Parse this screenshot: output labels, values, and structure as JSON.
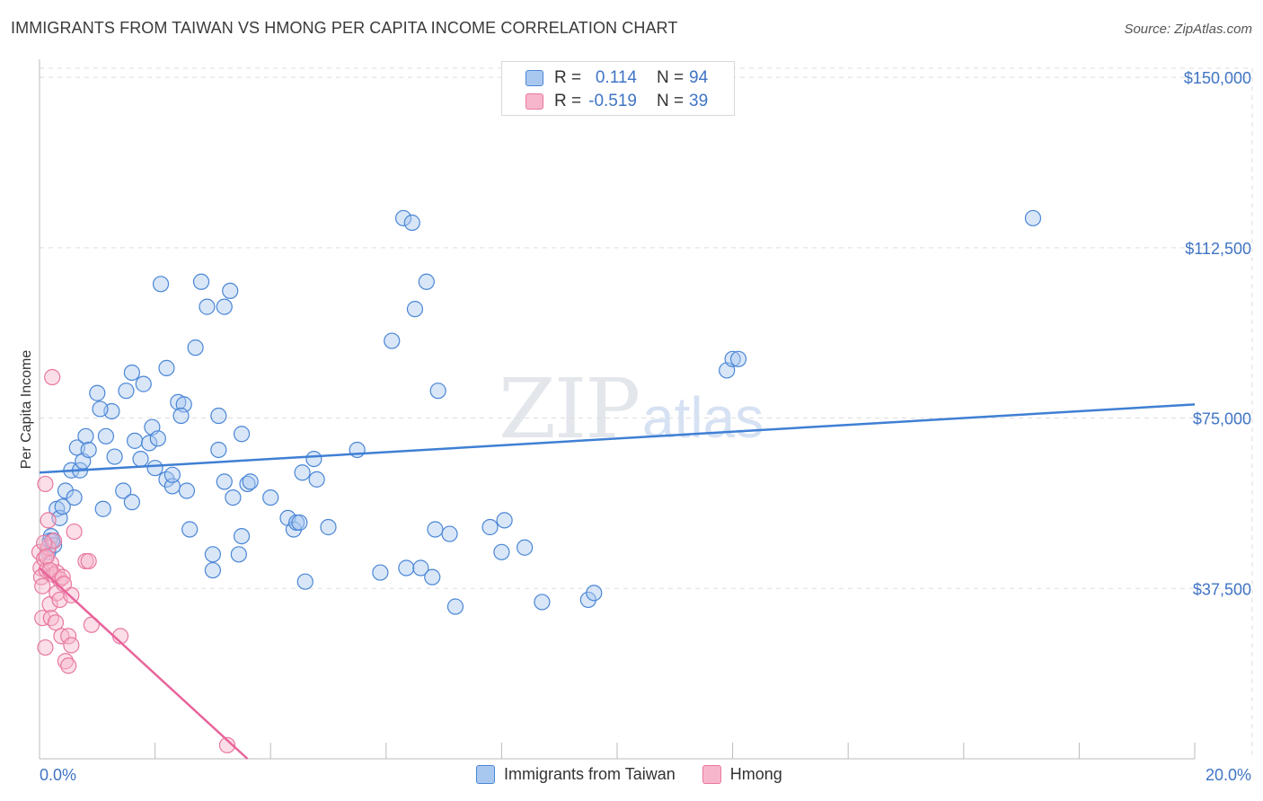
{
  "title": "IMMIGRANTS FROM TAIWAN VS HMONG PER CAPITA INCOME CORRELATION CHART",
  "source": "Source: ZipAtlas.com",
  "watermark": {
    "zip": "ZIP",
    "atlas": "atlas"
  },
  "legend": {
    "rows": [
      {
        "r_label": "R =",
        "r_value": "0.114",
        "n_label": "N =",
        "n_value": "94"
      },
      {
        "r_label": "R =",
        "r_value": "-0.519",
        "n_label": "N =",
        "n_value": "39"
      }
    ]
  },
  "colors": {
    "taiwan_fill": "#a9c8f0",
    "taiwan_stroke": "#4a86d6",
    "taiwan_line": "#3f7fd4",
    "hmong_fill": "#f7b6cb",
    "hmong_stroke": "#e8789e",
    "hmong_line": "#e8649a",
    "grid": "#dddddd",
    "tick_label": "#3f74c4"
  },
  "chart_data": {
    "type": "scatter",
    "title": "IMMIGRANTS FROM TAIWAN VS HMONG PER CAPITA INCOME CORRELATION CHART",
    "xlabel": "",
    "ylabel": "Per Capita Income",
    "xlim": [
      0,
      20
    ],
    "ylim": [
      0,
      152000
    ],
    "x_tick_labels": [
      "0.0%",
      "20.0%"
    ],
    "y_ticks": [
      37500,
      75000,
      112500,
      150000
    ],
    "y_tick_labels": [
      "$37,500",
      "$75,000",
      "$112,500",
      "$150,000"
    ],
    "grid": true,
    "legend_placement": "bottom-center",
    "series": [
      {
        "name": "Immigrants from Taiwan",
        "trend": [
          [
            0.0,
            63000
          ],
          [
            20.0,
            78000
          ]
        ],
        "points": [
          [
            0.15,
            45500
          ],
          [
            0.18,
            48000
          ],
          [
            0.2,
            49000
          ],
          [
            0.25,
            47000
          ],
          [
            0.3,
            55000
          ],
          [
            0.35,
            53000
          ],
          [
            0.4,
            55500
          ],
          [
            0.45,
            59000
          ],
          [
            0.55,
            63500
          ],
          [
            0.6,
            57500
          ],
          [
            0.65,
            68500
          ],
          [
            0.7,
            63500
          ],
          [
            0.75,
            65500
          ],
          [
            0.8,
            71000
          ],
          [
            0.85,
            68000
          ],
          [
            1.0,
            80500
          ],
          [
            1.1,
            55000
          ],
          [
            1.15,
            71000
          ],
          [
            1.25,
            76500
          ],
          [
            1.3,
            66500
          ],
          [
            1.45,
            59000
          ],
          [
            1.5,
            81000
          ],
          [
            1.6,
            56500
          ],
          [
            1.6,
            85000
          ],
          [
            1.65,
            70000
          ],
          [
            1.75,
            66000
          ],
          [
            1.8,
            82500
          ],
          [
            1.9,
            69500
          ],
          [
            1.95,
            73000
          ],
          [
            2.0,
            64000
          ],
          [
            2.05,
            70500
          ],
          [
            2.1,
            104500
          ],
          [
            2.2,
            86000
          ],
          [
            2.2,
            61500
          ],
          [
            2.3,
            60000
          ],
          [
            2.3,
            62500
          ],
          [
            2.4,
            78500
          ],
          [
            2.5,
            78000
          ],
          [
            2.55,
            59000
          ],
          [
            2.6,
            50500
          ],
          [
            2.7,
            90500
          ],
          [
            2.8,
            105000
          ],
          [
            2.9,
            99500
          ],
          [
            3.0,
            45000
          ],
          [
            3.0,
            41500
          ],
          [
            3.1,
            75500
          ],
          [
            3.1,
            68000
          ],
          [
            3.2,
            61000
          ],
          [
            3.2,
            99500
          ],
          [
            3.3,
            103000
          ],
          [
            3.35,
            57500
          ],
          [
            3.45,
            45000
          ],
          [
            3.5,
            49000
          ],
          [
            3.5,
            71500
          ],
          [
            3.6,
            60500
          ],
          [
            3.65,
            61000
          ],
          [
            4.0,
            57500
          ],
          [
            4.3,
            53000
          ],
          [
            4.4,
            50500
          ],
          [
            4.45,
            52000
          ],
          [
            4.55,
            63000
          ],
          [
            4.6,
            39000
          ],
          [
            4.75,
            66000
          ],
          [
            4.8,
            61500
          ],
          [
            5.0,
            51000
          ],
          [
            5.5,
            68000
          ],
          [
            5.9,
            41000
          ],
          [
            6.1,
            92000
          ],
          [
            6.3,
            119000
          ],
          [
            6.35,
            42000
          ],
          [
            6.45,
            118000
          ],
          [
            6.5,
            99000
          ],
          [
            6.6,
            42000
          ],
          [
            6.7,
            105000
          ],
          [
            6.8,
            40000
          ],
          [
            6.85,
            50500
          ],
          [
            6.9,
            81000
          ],
          [
            7.1,
            49500
          ],
          [
            7.2,
            33500
          ],
          [
            7.8,
            51000
          ],
          [
            8.05,
            52500
          ],
          [
            8.0,
            45500
          ],
          [
            8.4,
            46500
          ],
          [
            8.7,
            34500
          ],
          [
            9.5,
            35000
          ],
          [
            9.6,
            36500
          ],
          [
            11.9,
            85500
          ],
          [
            12.0,
            88000
          ],
          [
            12.1,
            88000
          ],
          [
            17.2,
            119000
          ],
          [
            0.22,
            48000
          ],
          [
            1.05,
            77000
          ],
          [
            2.45,
            75500
          ],
          [
            4.5,
            52000
          ]
        ]
      },
      {
        "name": "Hmong",
        "trend": [
          [
            0.0,
            42000
          ],
          [
            3.6,
            0
          ]
        ],
        "points": [
          [
            0.0,
            45500
          ],
          [
            0.02,
            42000
          ],
          [
            0.03,
            40000
          ],
          [
            0.05,
            38000
          ],
          [
            0.05,
            31000
          ],
          [
            0.08,
            44000
          ],
          [
            0.1,
            60500
          ],
          [
            0.1,
            24500
          ],
          [
            0.12,
            41500
          ],
          [
            0.15,
            46500
          ],
          [
            0.15,
            52500
          ],
          [
            0.18,
            34000
          ],
          [
            0.2,
            43000
          ],
          [
            0.2,
            31000
          ],
          [
            0.22,
            84000
          ],
          [
            0.25,
            40500
          ],
          [
            0.25,
            48000
          ],
          [
            0.28,
            30000
          ],
          [
            0.3,
            41000
          ],
          [
            0.3,
            36500
          ],
          [
            0.35,
            35000
          ],
          [
            0.35,
            39500
          ],
          [
            0.38,
            27000
          ],
          [
            0.4,
            40000
          ],
          [
            0.45,
            21500
          ],
          [
            0.5,
            20500
          ],
          [
            0.5,
            27000
          ],
          [
            0.55,
            36000
          ],
          [
            0.55,
            25000
          ],
          [
            0.6,
            50000
          ],
          [
            0.8,
            43500
          ],
          [
            0.85,
            43500
          ],
          [
            0.9,
            29500
          ],
          [
            1.4,
            27000
          ],
          [
            3.25,
            3000
          ],
          [
            0.08,
            47500
          ],
          [
            0.12,
            44500
          ],
          [
            0.18,
            41500
          ],
          [
            0.42,
            38500
          ]
        ]
      }
    ]
  }
}
